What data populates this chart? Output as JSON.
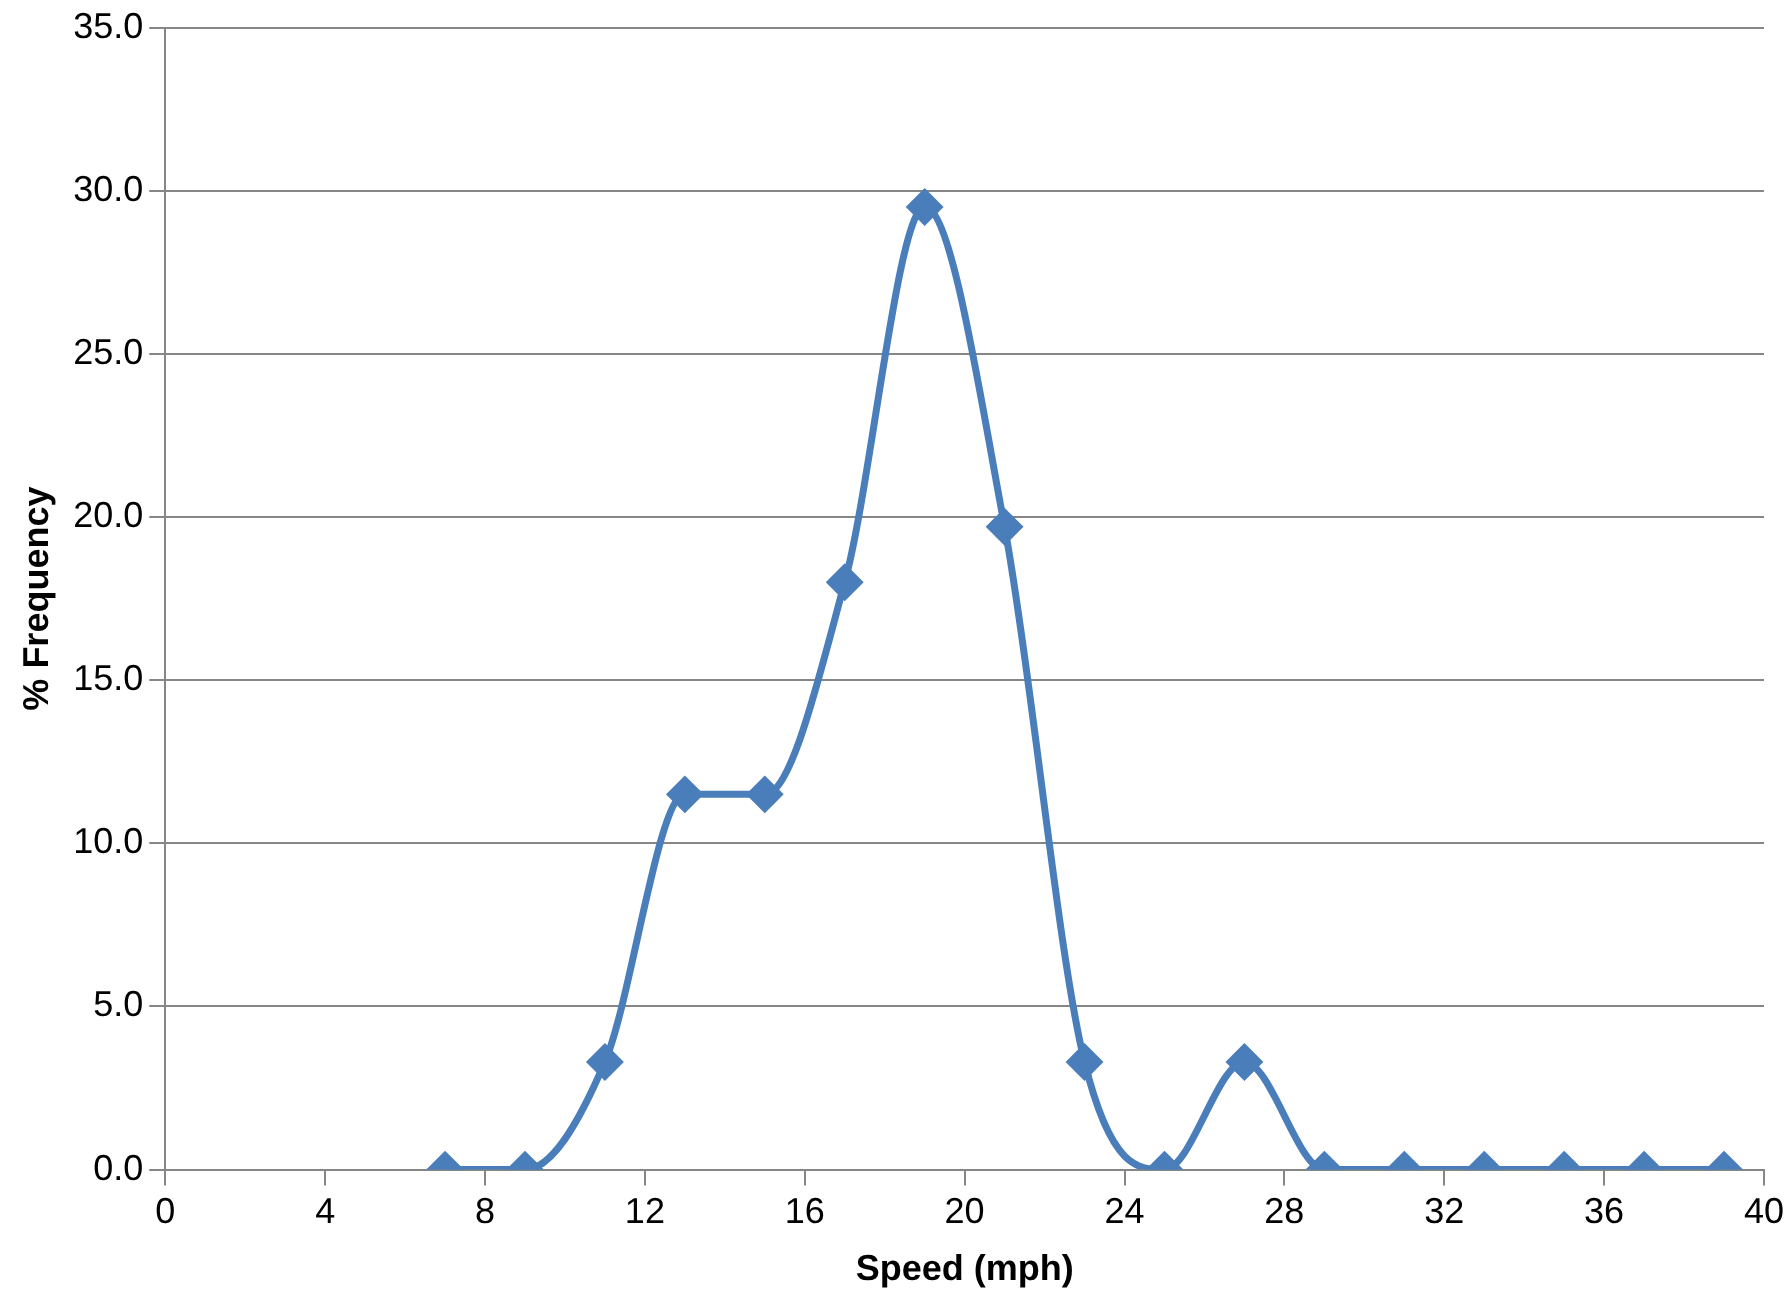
{
  "chart_data": {
    "type": "line",
    "xlabel": "Speed (mph)",
    "ylabel": "% Frequency",
    "x": [
      7,
      9,
      11,
      13,
      15,
      17,
      19,
      21,
      23,
      25,
      27,
      29,
      31,
      33,
      35,
      37,
      39
    ],
    "series": [
      {
        "color": "#4a7ebb",
        "values": [
          0,
          0,
          3.3,
          11.5,
          11.5,
          18.0,
          29.5,
          19.7,
          3.3,
          0,
          3.3,
          0,
          0,
          0,
          0,
          0,
          0
        ]
      }
    ],
    "xlim": [
      0,
      40
    ],
    "xticks": [
      0,
      4,
      8,
      12,
      16,
      20,
      24,
      28,
      32,
      36,
      40
    ],
    "ylim": [
      0,
      35
    ],
    "yticks": [
      {
        "value": 0,
        "label": "0.0"
      },
      {
        "value": 5,
        "label": "5.0"
      },
      {
        "value": 10,
        "label": "10.0"
      },
      {
        "value": 15,
        "label": "15.0"
      },
      {
        "value": 20,
        "label": "20.0"
      },
      {
        "value": 25,
        "label": "25.0"
      },
      {
        "value": 30,
        "label": "30.0"
      },
      {
        "value": 35,
        "label": "35.0"
      }
    ],
    "grid": "y",
    "legend": false,
    "marker": "diamond",
    "line_style": "solid"
  }
}
